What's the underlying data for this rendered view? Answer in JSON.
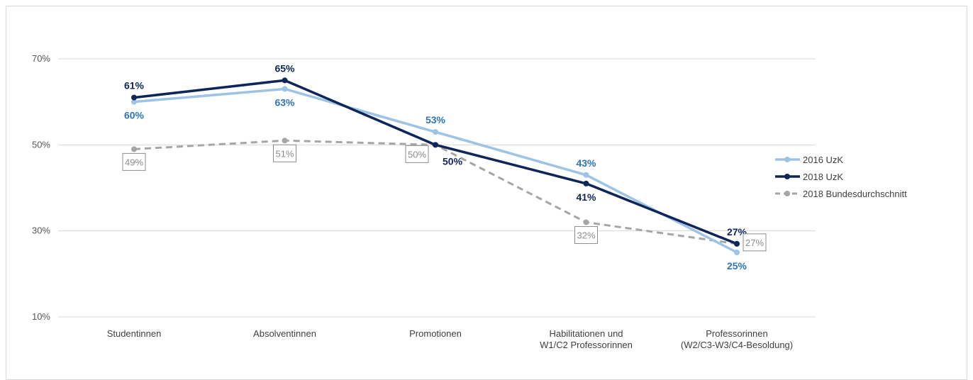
{
  "chart_data": {
    "type": "line",
    "title": "",
    "xlabel": "",
    "ylabel": "",
    "categories": [
      [
        "Studentinnen"
      ],
      [
        "Absolventinnen"
      ],
      [
        "Promotionen"
      ],
      [
        "Habilitationen und",
        "W1/C2 Professorinnen"
      ],
      [
        "Professorinnen",
        "(W2/C3-W3/C4-Besoldung)"
      ]
    ],
    "y_ticks": [
      "10%",
      "30%",
      "50%",
      "70%"
    ],
    "y_tick_values": [
      10,
      30,
      50,
      70
    ],
    "ylim": [
      10,
      70
    ],
    "grid": true,
    "legend_position": "right",
    "series": [
      {
        "name": "2016 UzK",
        "color": "#9dc3e6",
        "style": "solid",
        "values": [
          60,
          63,
          53,
          43,
          25
        ],
        "labels": [
          "60%",
          "63%",
          "53%",
          "43%",
          "25%"
        ],
        "label_color": "#2e75b6",
        "label_pos": [
          "below",
          "below",
          "above",
          "above",
          "below"
        ]
      },
      {
        "name": "2018 UzK",
        "color": "#0d2559",
        "style": "solid",
        "values": [
          61,
          65,
          50,
          41,
          27
        ],
        "labels": [
          "61%",
          "65%",
          "50%",
          "41%",
          "27%"
        ],
        "label_color": "#0d2559",
        "label_pos": [
          "above",
          "above",
          "right",
          "below",
          "above"
        ]
      },
      {
        "name": "2018 Bundesdurchschnitt",
        "color": "#a6a6a6",
        "style": "dashed",
        "values": [
          49,
          51,
          50,
          32,
          27
        ],
        "labels": [
          "49%",
          "51%",
          "50%",
          "32%",
          "27%"
        ],
        "label_color": "#8c8c8c",
        "label_pos": [
          "below-box",
          "below-box",
          "left-box",
          "below-box",
          "right-box"
        ]
      }
    ]
  }
}
